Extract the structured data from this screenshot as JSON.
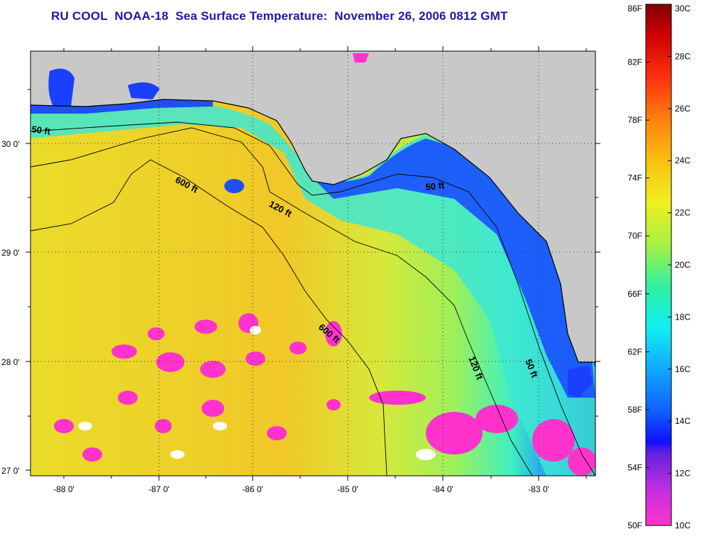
{
  "title": "RU COOL  NOAA-18  Sea Surface Temperature:  November 26, 2006 0812 GMT",
  "map": {
    "lat_ticks": [
      "30 0'",
      "29 0'",
      "28 0'",
      "27 0'"
    ],
    "lon_ticks": [
      "-88 0'",
      "-87 0'",
      "-86 0'",
      "-85 0'",
      "-84 0'",
      "-83 0'"
    ],
    "contour_labels": [
      {
        "text": "50 ft"
      },
      {
        "text": "600 ft"
      },
      {
        "text": "120 ft"
      },
      {
        "text": "50 ft"
      },
      {
        "text": "600 ft"
      },
      {
        "text": "120 ft"
      },
      {
        "text": "50 ft"
      }
    ],
    "colors": {
      "land": "#c8c8c8",
      "cloud": "#ff33cc",
      "cold": "#1040ff",
      "warm": "#f2cc22"
    }
  },
  "colorbar": {
    "fahrenheit": [
      "86F",
      "82F",
      "78F",
      "74F",
      "70F",
      "66F",
      "62F",
      "58F",
      "54F",
      "50F"
    ],
    "celsius": [
      "30C",
      "28C",
      "26C",
      "24C",
      "22C",
      "20C",
      "18C",
      "16C",
      "14C",
      "12C",
      "10C"
    ]
  }
}
